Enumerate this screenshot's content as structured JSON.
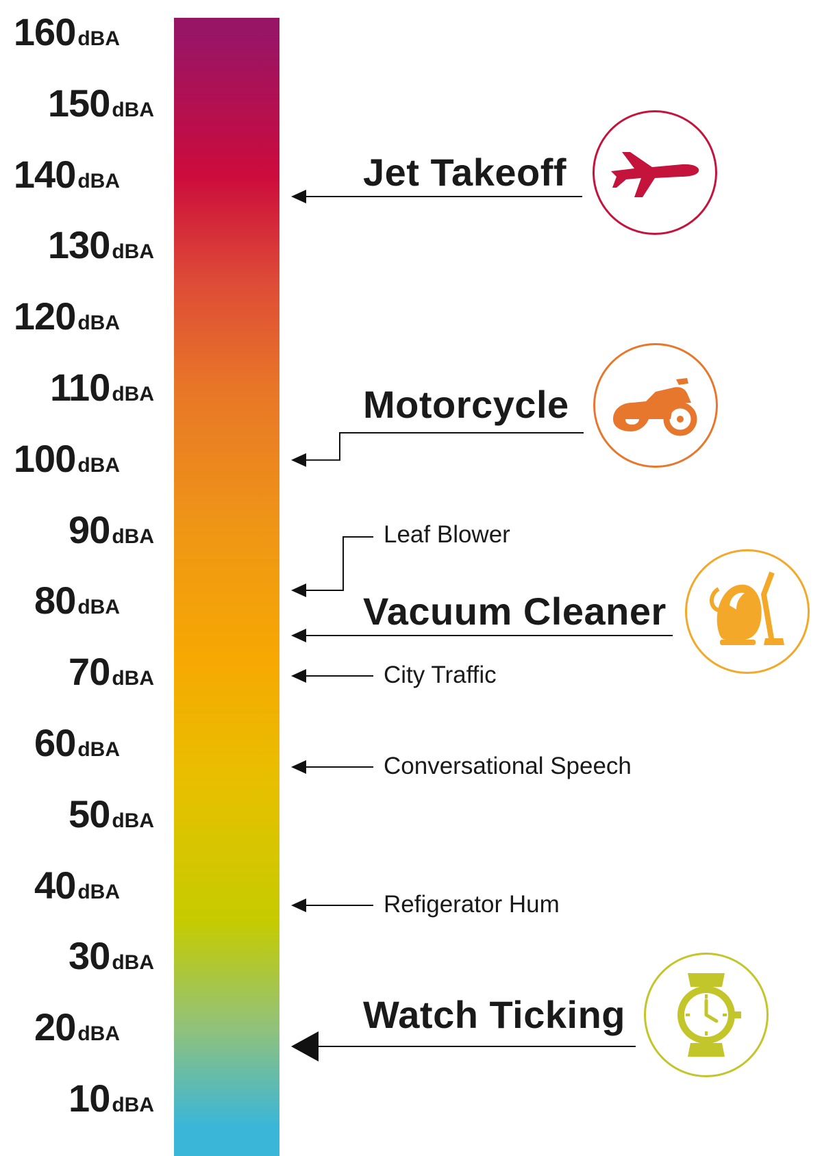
{
  "unit": "dBA",
  "ticks": [
    160,
    150,
    140,
    130,
    120,
    110,
    100,
    90,
    80,
    70,
    60,
    50,
    40,
    30,
    20,
    10
  ],
  "sources": [
    {
      "label": "Jet Takeoff",
      "level": 140,
      "size": "major",
      "icon": "airplane-icon",
      "color": "#c4143c"
    },
    {
      "label": "Motorcycle",
      "level": 100,
      "size": "major",
      "icon": "motorcycle-icon",
      "color": "#e8772e"
    },
    {
      "label": "Leaf Blower",
      "level": 86,
      "size": "minor"
    },
    {
      "label": "Vacuum Cleaner",
      "level": 79,
      "size": "major",
      "icon": "vacuum-cleaner-icon",
      "color": "#f3a82a"
    },
    {
      "label": "City Traffic",
      "level": 73,
      "size": "minor"
    },
    {
      "label": "Conversational Speech",
      "level": 60,
      "size": "minor"
    },
    {
      "label": "Refigerator Hum",
      "level": 40,
      "size": "minor"
    },
    {
      "label": "Watch Ticking",
      "level": 20,
      "size": "major",
      "icon": "wristwatch-icon",
      "color": "#c2c62a"
    }
  ],
  "gradient_stops": [
    {
      "level": 160,
      "color": "#981566"
    },
    {
      "level": 140,
      "color": "#cc0b3d"
    },
    {
      "level": 125,
      "color": "#dd4b36"
    },
    {
      "level": 110,
      "color": "#e87628"
    },
    {
      "level": 90,
      "color": "#ef9616"
    },
    {
      "level": 72,
      "color": "#f7a802"
    },
    {
      "level": 55,
      "color": "#e8bf00"
    },
    {
      "level": 35,
      "color": "#c6cb00"
    },
    {
      "level": 20,
      "color": "#91c27a"
    },
    {
      "level": 6,
      "color": "#3ab6d9"
    }
  ]
}
